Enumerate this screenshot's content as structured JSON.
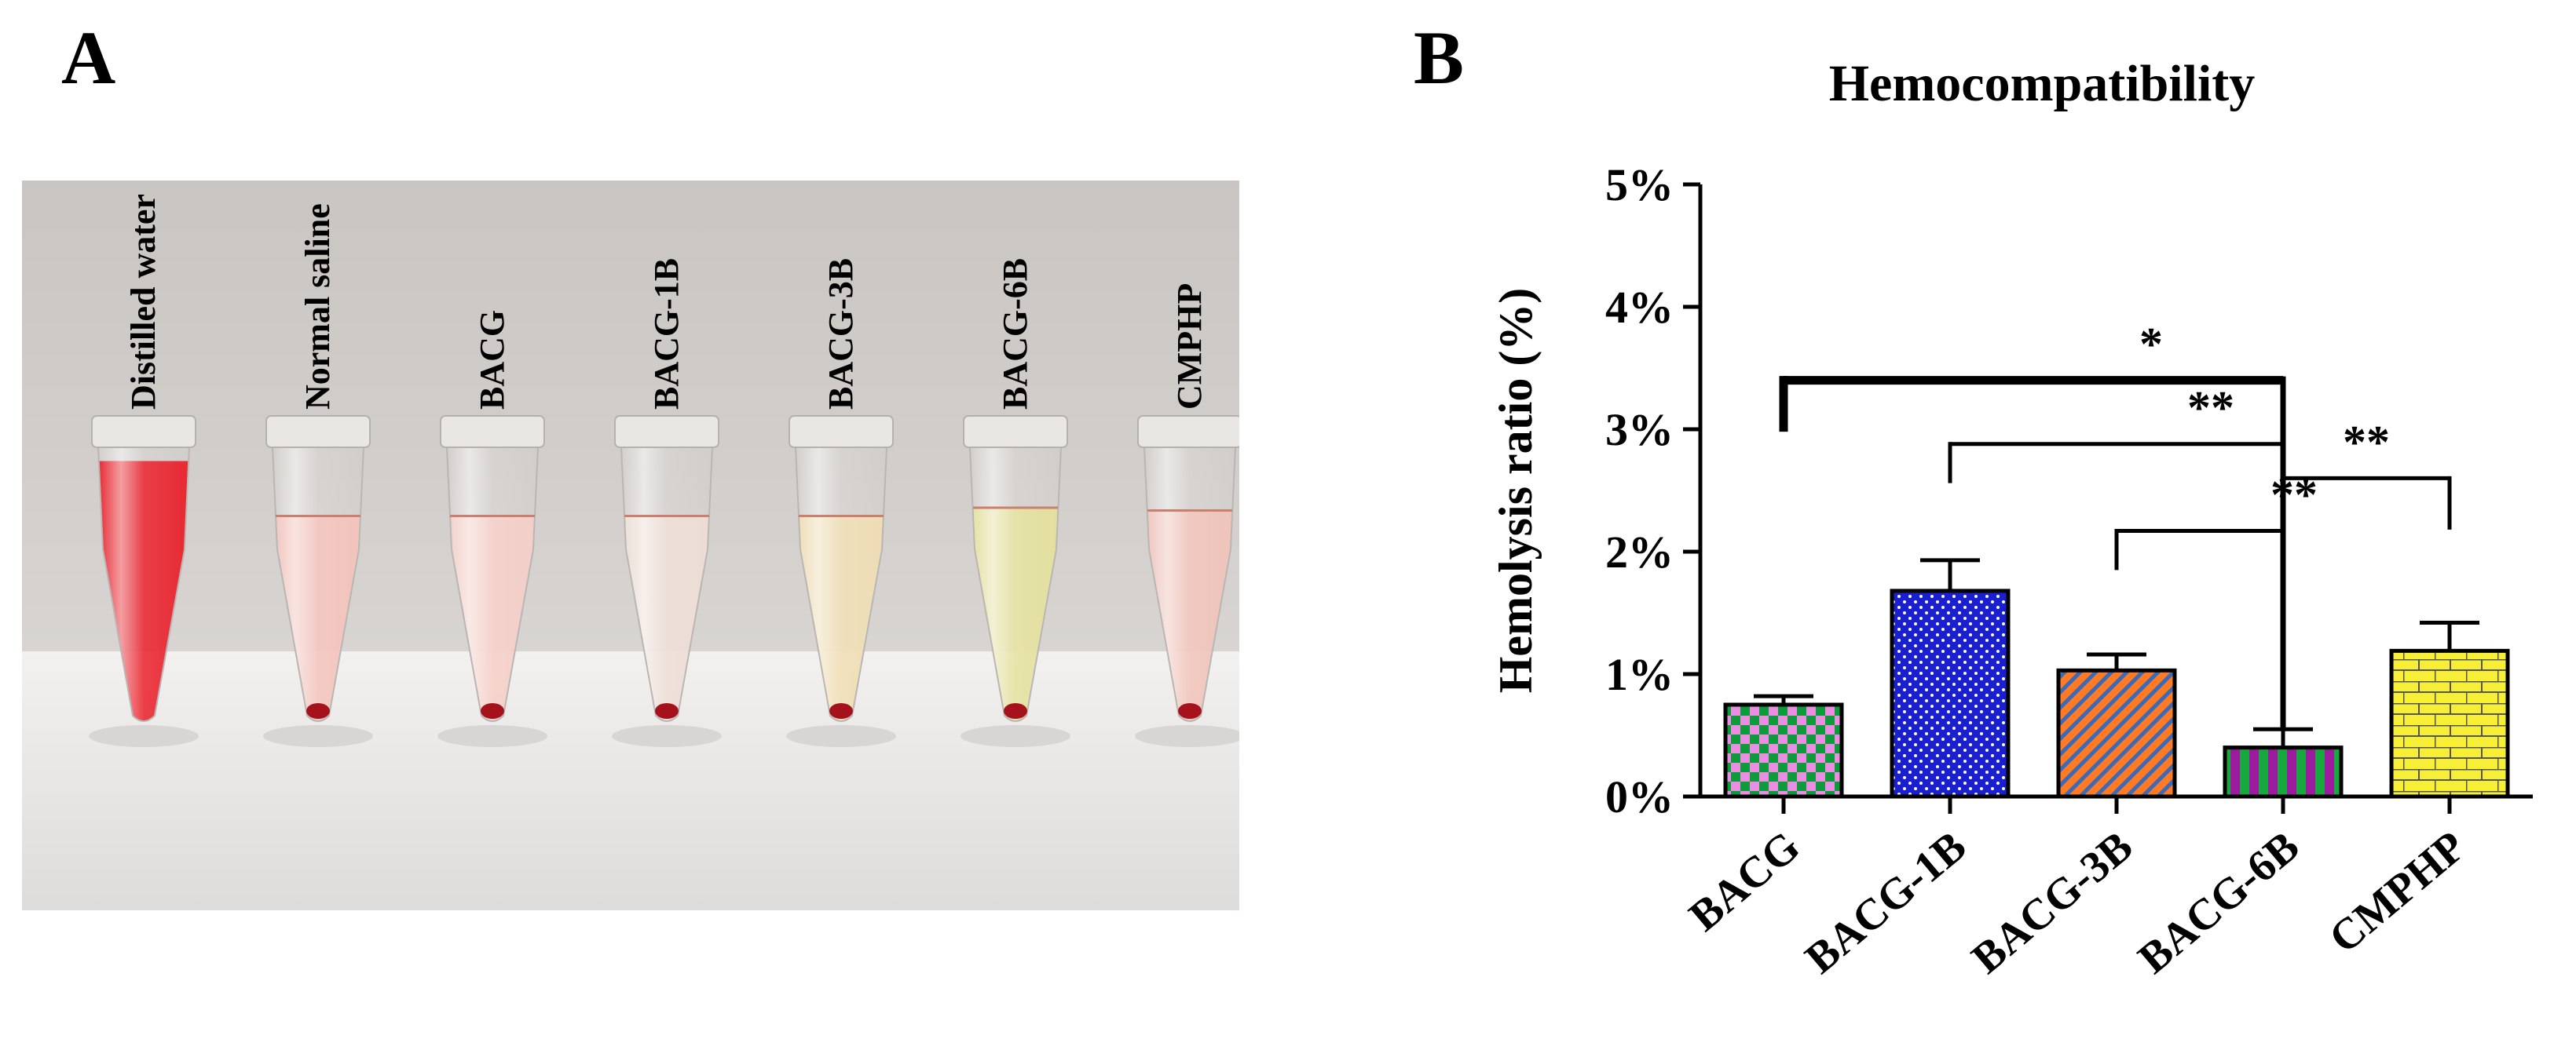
{
  "panel_a": {
    "letter": "A",
    "tubes": [
      {
        "label": "Distilled water",
        "liquid": "#e8202a",
        "level": 0.95,
        "pellet": false
      },
      {
        "label": "Normal saline",
        "liquid": "#f2c2bb",
        "level": 0.75,
        "pellet": true
      },
      {
        "label": "BACG",
        "liquid": "#f3cdc6",
        "level": 0.75,
        "pellet": true
      },
      {
        "label": "BACG-1B",
        "liquid": "#ecdcd4",
        "level": 0.75,
        "pellet": true
      },
      {
        "label": "BACG-3B",
        "liquid": "#eedcb2",
        "level": 0.75,
        "pellet": true
      },
      {
        "label": "BACG-6B",
        "liquid": "#e4df9c",
        "level": 0.78,
        "pellet": true
      },
      {
        "label": "CMPHP",
        "liquid": "#efc2b8",
        "level": 0.77,
        "pellet": true
      }
    ]
  },
  "panel_b": {
    "letter": "B",
    "chart_data": {
      "type": "bar",
      "title": "Hemocompatibility",
      "xlabel": "",
      "ylabel": "Hemolysis ratio (%)",
      "ylim": [
        0,
        5
      ],
      "yticks": [
        "0%",
        "1%",
        "2%",
        "3%",
        "4%",
        "5%"
      ],
      "categories": [
        "BACG",
        "BACG-1B",
        "BACG-3B",
        "BACG-6B",
        "CMPHP"
      ],
      "values": [
        0.75,
        1.68,
        1.03,
        0.4,
        1.19
      ],
      "errors": [
        0.07,
        0.25,
        0.13,
        0.15,
        0.23
      ],
      "fills": [
        {
          "pattern": "checker",
          "colors": [
            "#e98ee0",
            "#0d9a3a"
          ]
        },
        {
          "pattern": "dots",
          "colors": [
            "#1a1fd0",
            "#ffffff"
          ]
        },
        {
          "pattern": "diagonal",
          "colors": [
            "#ff7a22",
            "#3a6ab8"
          ]
        },
        {
          "pattern": "vstripes",
          "colors": [
            "#9b1a9e",
            "#18a840"
          ]
        },
        {
          "pattern": "bricks",
          "colors": [
            "#f7ef36",
            "#555555"
          ]
        }
      ],
      "significance": [
        {
          "from": 0,
          "to": 3,
          "level": 3.4,
          "label": "*",
          "bold": true
        },
        {
          "from": 1,
          "to": 3,
          "level": 2.88,
          "label": "**",
          "bold": false
        },
        {
          "from": 2,
          "to": 3,
          "level": 2.17,
          "label": "**",
          "bold": false
        },
        {
          "from": 4,
          "to": 3,
          "level": 2.6,
          "label": "**",
          "bold": false
        }
      ],
      "bracket_drop": 1.0
    }
  }
}
